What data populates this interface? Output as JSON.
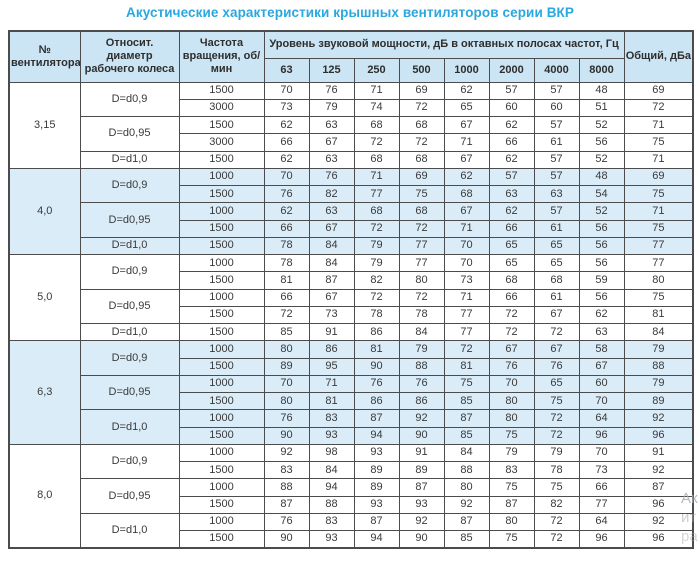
{
  "title": "Акустические характеристики крышных вентиляторов серии ВКР",
  "colors": {
    "title_text": "#29a8df",
    "header_bg": "#cbe5f4",
    "shaded_row_bg": "#daecf8",
    "border": "#4c4c4c"
  },
  "watermark": {
    "lines": [
      "Ак",
      "ит",
      "ра"
    ]
  },
  "table": {
    "headers": {
      "fan_number": "№ вентилятора",
      "diameter": "Относит. диаметр рабочего колеса",
      "rpm": "Частота вращения, об/мин",
      "sound_power": "Уровень звуковой мощности, дБ в октавных полосах частот, Гц",
      "total": "Общий, дБа"
    },
    "frequencies": [
      "63",
      "125",
      "250",
      "500",
      "1000",
      "2000",
      "4000",
      "8000"
    ],
    "sections": [
      {
        "fan": "3,15",
        "shaded": false,
        "groups": [
          {
            "diameter": "D=d0,9",
            "rows": [
              {
                "rpm": "1500",
                "levels": [
                  70,
                  76,
                  71,
                  69,
                  62,
                  57,
                  57,
                  48
                ],
                "total": 69
              },
              {
                "rpm": "3000",
                "levels": [
                  73,
                  79,
                  74,
                  72,
                  65,
                  60,
                  60,
                  51
                ],
                "total": 72
              }
            ]
          },
          {
            "diameter": "D=d0,95",
            "rows": [
              {
                "rpm": "1500",
                "levels": [
                  62,
                  63,
                  68,
                  68,
                  67,
                  62,
                  57,
                  52
                ],
                "total": 71
              },
              {
                "rpm": "3000",
                "levels": [
                  66,
                  67,
                  72,
                  72,
                  71,
                  66,
                  61,
                  56
                ],
                "total": 75
              }
            ]
          },
          {
            "diameter": "D=d1,0",
            "rows": [
              {
                "rpm": "1500",
                "levels": [
                  62,
                  63,
                  68,
                  68,
                  67,
                  62,
                  57,
                  52
                ],
                "total": 71
              }
            ]
          }
        ]
      },
      {
        "fan": "4,0",
        "shaded": true,
        "groups": [
          {
            "diameter": "D=d0,9",
            "rows": [
              {
                "rpm": "1000",
                "levels": [
                  70,
                  76,
                  71,
                  69,
                  62,
                  57,
                  57,
                  48
                ],
                "total": 69
              },
              {
                "rpm": "1500",
                "levels": [
                  76,
                  82,
                  77,
                  75,
                  68,
                  63,
                  63,
                  54
                ],
                "total": 75
              }
            ]
          },
          {
            "diameter": "D=d0,95",
            "rows": [
              {
                "rpm": "1000",
                "levels": [
                  62,
                  63,
                  68,
                  68,
                  67,
                  62,
                  57,
                  52
                ],
                "total": 71
              },
              {
                "rpm": "1500",
                "levels": [
                  66,
                  67,
                  72,
                  72,
                  71,
                  66,
                  61,
                  56
                ],
                "total": 75
              }
            ]
          },
          {
            "diameter": "D=d1,0",
            "rows": [
              {
                "rpm": "1500",
                "levels": [
                  78,
                  84,
                  79,
                  77,
                  70,
                  65,
                  65,
                  56
                ],
                "total": 77
              }
            ]
          }
        ]
      },
      {
        "fan": "5,0",
        "shaded": false,
        "groups": [
          {
            "diameter": "D=d0,9",
            "rows": [
              {
                "rpm": "1000",
                "levels": [
                  78,
                  84,
                  79,
                  77,
                  70,
                  65,
                  65,
                  56
                ],
                "total": 77
              },
              {
                "rpm": "1500",
                "levels": [
                  81,
                  87,
                  82,
                  80,
                  73,
                  68,
                  68,
                  59
                ],
                "total": 80
              }
            ]
          },
          {
            "diameter": "D=d0,95",
            "rows": [
              {
                "rpm": "1000",
                "levels": [
                  66,
                  67,
                  72,
                  72,
                  71,
                  66,
                  61,
                  56
                ],
                "total": 75
              },
              {
                "rpm": "1500",
                "levels": [
                  72,
                  73,
                  78,
                  78,
                  77,
                  72,
                  67,
                  62
                ],
                "total": 81
              }
            ]
          },
          {
            "diameter": "D=d1,0",
            "rows": [
              {
                "rpm": "1500",
                "levels": [
                  85,
                  91,
                  86,
                  84,
                  77,
                  72,
                  72,
                  63
                ],
                "total": 84
              }
            ]
          }
        ]
      },
      {
        "fan": "6,3",
        "shaded": true,
        "groups": [
          {
            "diameter": "D=d0,9",
            "rows": [
              {
                "rpm": "1000",
                "levels": [
                  80,
                  86,
                  81,
                  79,
                  72,
                  67,
                  67,
                  58
                ],
                "total": 79
              },
              {
                "rpm": "1500",
                "levels": [
                  89,
                  95,
                  90,
                  88,
                  81,
                  76,
                  76,
                  67
                ],
                "total": 88
              }
            ]
          },
          {
            "diameter": "D=d0,95",
            "rows": [
              {
                "rpm": "1000",
                "levels": [
                  70,
                  71,
                  76,
                  76,
                  75,
                  70,
                  65,
                  60
                ],
                "total": 79
              },
              {
                "rpm": "1500",
                "levels": [
                  80,
                  81,
                  86,
                  86,
                  85,
                  80,
                  75,
                  70
                ],
                "total": 89
              }
            ]
          },
          {
            "diameter": "D=d1,0",
            "rows": [
              {
                "rpm": "1000",
                "levels": [
                  76,
                  83,
                  87,
                  92,
                  87,
                  80,
                  72,
                  64
                ],
                "total": 92
              },
              {
                "rpm": "1500",
                "levels": [
                  90,
                  93,
                  94,
                  90,
                  85,
                  75,
                  72,
                  96
                ],
                "total": 96
              }
            ]
          }
        ]
      },
      {
        "fan": "8,0",
        "shaded": false,
        "groups": [
          {
            "diameter": "D=d0,9",
            "rows": [
              {
                "rpm": "1000",
                "levels": [
                  92,
                  98,
                  93,
                  91,
                  84,
                  79,
                  79,
                  70
                ],
                "total": 91
              },
              {
                "rpm": "1500",
                "levels": [
                  83,
                  84,
                  89,
                  89,
                  88,
                  83,
                  78,
                  73
                ],
                "total": 92
              }
            ]
          },
          {
            "diameter": "D=d0,95",
            "rows": [
              {
                "rpm": "1000",
                "levels": [
                  88,
                  94,
                  89,
                  87,
                  80,
                  75,
                  75,
                  66
                ],
                "total": 87
              },
              {
                "rpm": "1500",
                "levels": [
                  87,
                  88,
                  93,
                  93,
                  92,
                  87,
                  82,
                  77
                ],
                "total": 96
              }
            ]
          },
          {
            "diameter": "D=d1,0",
            "rows": [
              {
                "rpm": "1000",
                "levels": [
                  76,
                  83,
                  87,
                  92,
                  87,
                  80,
                  72,
                  64
                ],
                "total": 92
              },
              {
                "rpm": "1500",
                "levels": [
                  90,
                  93,
                  94,
                  90,
                  85,
                  75,
                  72,
                  96
                ],
                "total": 96
              }
            ]
          }
        ]
      }
    ]
  }
}
